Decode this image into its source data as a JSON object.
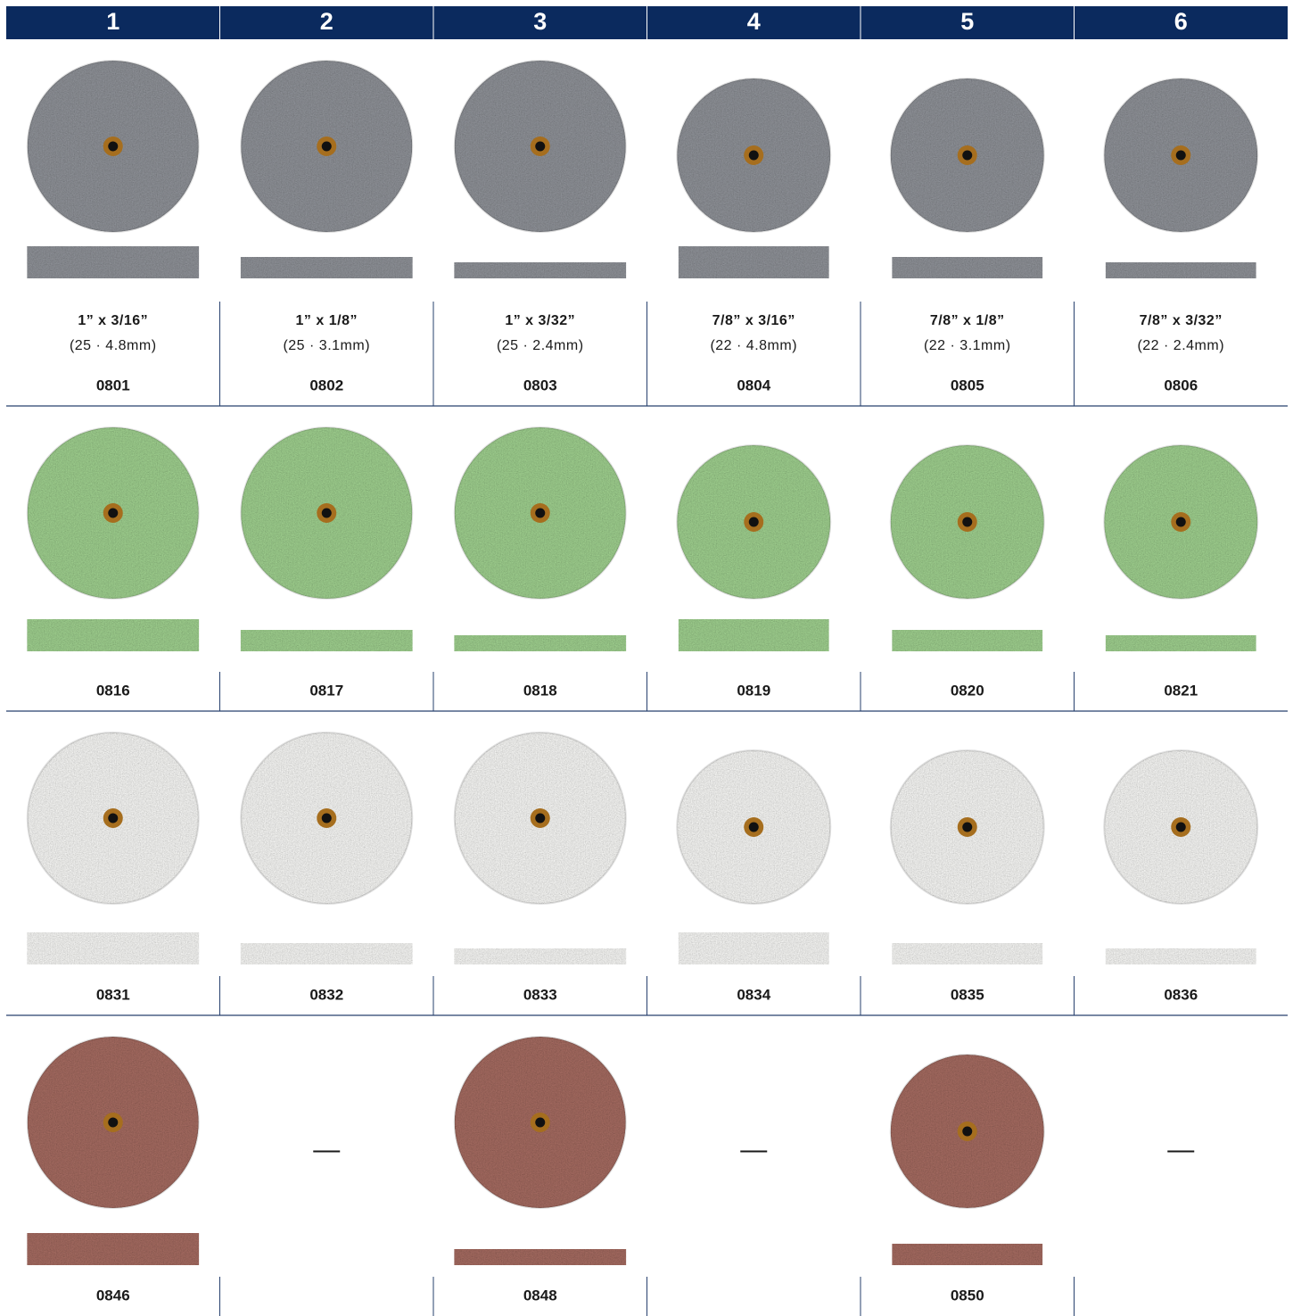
{
  "header": [
    "1",
    "2",
    "3",
    "4",
    "5",
    "6"
  ],
  "sizes": [
    {
      "inch": "1” x 3/16”",
      "mm": "(25 · 4.8mm)"
    },
    {
      "inch": "1” x 1/8”",
      "mm": "(25 · 3.1mm)"
    },
    {
      "inch": "1” x 3/32”",
      "mm": "(25 · 2.4mm)"
    },
    {
      "inch": "7/8” x 3/16”",
      "mm": "(22 · 4.8mm)"
    },
    {
      "inch": "7/8” x 1/8”",
      "mm": "(22 · 3.1mm)"
    },
    {
      "inch": "7/8” x 3/32”",
      "mm": "(22 · 2.4mm)"
    }
  ],
  "rows": [
    {
      "color": "#8c8f95",
      "cells": [
        {
          "code": "0801"
        },
        {
          "code": "0802"
        },
        {
          "code": "0803"
        },
        {
          "code": "0804"
        },
        {
          "code": "0805"
        },
        {
          "code": "0806"
        }
      ]
    },
    {
      "color": "#9ccc8c",
      "cells": [
        {
          "code": "0816"
        },
        {
          "code": "0817"
        },
        {
          "code": "0818"
        },
        {
          "code": "0819"
        },
        {
          "code": "0820"
        },
        {
          "code": "0821"
        }
      ]
    },
    {
      "color": "#f3f3f1",
      "cells": [
        {
          "code": "0831"
        },
        {
          "code": "0832"
        },
        {
          "code": "0833"
        },
        {
          "code": "0834"
        },
        {
          "code": "0835"
        },
        {
          "code": "0836"
        }
      ]
    },
    {
      "color": "#a2695f",
      "cells": [
        {
          "code": "0846"
        },
        {
          "empty": "—"
        },
        {
          "code": "0848"
        },
        {
          "empty": "—"
        },
        {
          "code": "0850"
        },
        {
          "empty": "—"
        }
      ]
    }
  ]
}
